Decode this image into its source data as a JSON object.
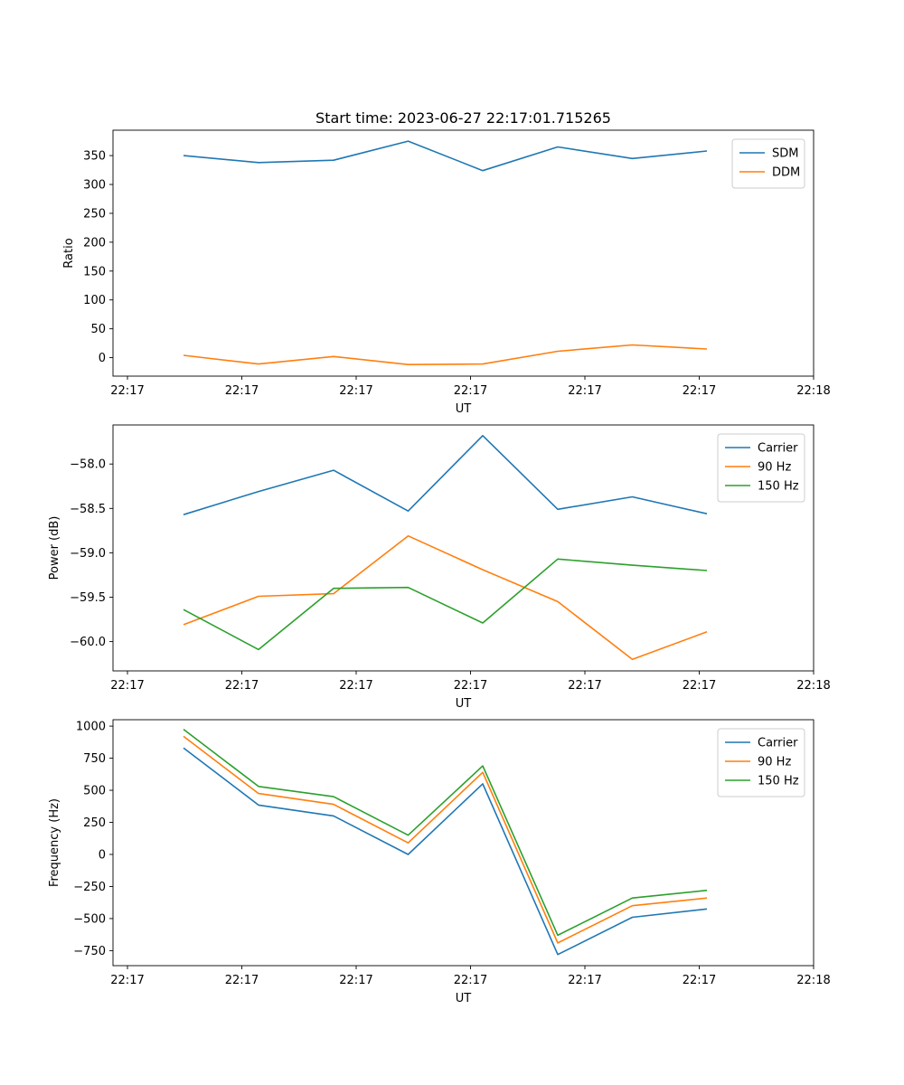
{
  "figure_title": "Start time: 2023-06-27 22:17:01.715265",
  "colors": {
    "blue": "#1f77b4",
    "orange": "#ff7f0e",
    "green": "#2ca02c"
  },
  "chart_data": [
    {
      "type": "line",
      "xlabel": "UT",
      "ylabel": "Ratio",
      "x_tick_labels": [
        "22:17",
        "22:17",
        "22:17",
        "22:17",
        "22:17",
        "22:17",
        "22:18"
      ],
      "y_ticks": [
        0,
        50,
        100,
        150,
        200,
        250,
        300,
        350
      ],
      "ylim": [
        -32,
        394
      ],
      "legend_position": "upper right",
      "series": [
        {
          "name": "SDM",
          "color": "#1f77b4",
          "values": [
            350,
            338,
            342,
            375,
            324,
            365,
            345,
            358
          ]
        },
        {
          "name": "DDM",
          "color": "#ff7f0e",
          "values": [
            4,
            -11,
            2,
            -12,
            -11,
            11,
            22,
            15
          ]
        }
      ]
    },
    {
      "type": "line",
      "xlabel": "UT",
      "ylabel": "Power (dB)",
      "x_tick_labels": [
        "22:17",
        "22:17",
        "22:17",
        "22:17",
        "22:17",
        "22:17",
        "22:18"
      ],
      "y_ticks": [
        -60.0,
        -59.5,
        -59.0,
        -58.5,
        -58.0
      ],
      "ylim": [
        -60.33,
        -57.56
      ],
      "legend_position": "upper right",
      "series": [
        {
          "name": "Carrier",
          "color": "#1f77b4",
          "values": [
            -58.57,
            -58.31,
            -58.07,
            -58.53,
            -57.68,
            -58.51,
            -58.37,
            -58.56
          ]
        },
        {
          "name": "90 Hz",
          "color": "#ff7f0e",
          "values": [
            -59.81,
            -59.49,
            -59.46,
            -58.81,
            -59.19,
            -59.55,
            -60.2,
            -59.89
          ]
        },
        {
          "name": "150 Hz",
          "color": "#2ca02c",
          "values": [
            -59.64,
            -60.09,
            -59.4,
            -59.39,
            -59.79,
            -59.07,
            -59.14,
            -59.2
          ]
        }
      ]
    },
    {
      "type": "line",
      "xlabel": "UT",
      "ylabel": "Frequency (Hz)",
      "x_tick_labels": [
        "22:17",
        "22:17",
        "22:17",
        "22:17",
        "22:17",
        "22:17",
        "22:18"
      ],
      "y_ticks": [
        -750,
        -500,
        -250,
        0,
        250,
        500,
        750,
        1000
      ],
      "ylim": [
        -867,
        1050
      ],
      "legend_position": "upper right",
      "series": [
        {
          "name": "Carrier",
          "color": "#1f77b4",
          "values": [
            830,
            385,
            300,
            0,
            550,
            -780,
            -490,
            -425
          ]
        },
        {
          "name": "90 Hz",
          "color": "#ff7f0e",
          "values": [
            920,
            475,
            390,
            90,
            640,
            -690,
            -400,
            -340
          ]
        },
        {
          "name": "150 Hz",
          "color": "#2ca02c",
          "values": [
            975,
            530,
            450,
            150,
            690,
            -630,
            -340,
            -280
          ]
        }
      ]
    }
  ]
}
